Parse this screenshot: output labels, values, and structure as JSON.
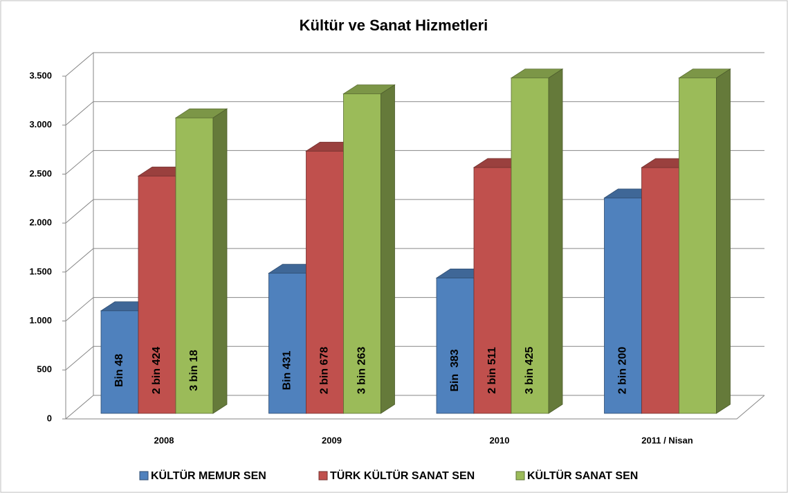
{
  "chart_data": {
    "type": "bar3d",
    "title": "Kültür ve Sanat Hizmetleri",
    "categories": [
      "2008",
      "2009",
      "2010",
      "2011 / Nisan"
    ],
    "series": [
      {
        "name": "KÜLTÜR MEMUR SEN",
        "color": "#4f81bd",
        "values": [
          1048,
          1431,
          1383,
          2200
        ],
        "value_labels": [
          "Bin 48",
          "Bin 431",
          "Bin  383",
          "2 bin 200"
        ]
      },
      {
        "name": "TÜRK KÜLTÜR SANAT SEN",
        "color": "#c0504d",
        "values": [
          2424,
          2678,
          2511,
          2510
        ],
        "value_labels": [
          "2 bin 424",
          "2 bin 678",
          "2 bin 511",
          null
        ]
      },
      {
        "name": "KÜLTÜR SANAT SEN",
        "color": "#9bbb59",
        "values": [
          3018,
          3263,
          3425,
          3425
        ],
        "value_labels": [
          "3 bin 18",
          "3 bin 263",
          "3 bin 425",
          null
        ]
      }
    ],
    "ylim": [
      0,
      3500
    ],
    "yticks": [
      0,
      500,
      {
        "value": 1000,
        "label": "1.000"
      },
      {
        "value": 1500,
        "label": "1.500"
      },
      {
        "value": 2000,
        "label": "2.000"
      },
      {
        "value": 2500,
        "label": "2.500"
      },
      {
        "value": 3000,
        "label": "3.000"
      },
      {
        "value": 3500,
        "label": "3.500"
      }
    ],
    "grid": true,
    "legend": "bottom"
  }
}
